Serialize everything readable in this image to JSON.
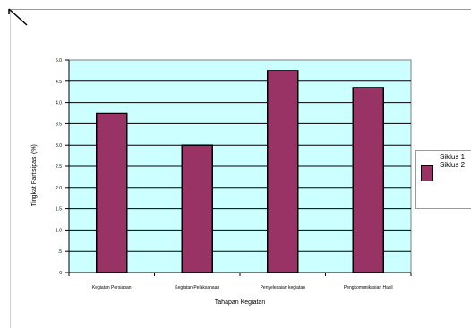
{
  "chart_data": {
    "type": "bar",
    "categories": [
      "Kegiatan Persiapan",
      "Kegiatan Pelaksanaan",
      "Penyelesaian kegiatan",
      "Pengkomunikasian Hasil"
    ],
    "values": [
      3.75,
      3.0,
      4.75,
      4.35
    ],
    "xlabel": "Tahapan Kegiatan",
    "ylabel": "Tingkat Partisipasi (%)",
    "ylim": [
      0,
      5
    ],
    "yticks": [
      "0",
      ".5",
      "1.0",
      "1.5",
      "2.0",
      "2.5",
      "3.0",
      "3.5",
      "4.0",
      "4.5",
      "5.0"
    ],
    "grid": true,
    "legend_position": "right",
    "legend": [
      "Siklus 1",
      "Siklus 2"
    ],
    "colors": {
      "bar": "#993366",
      "plot_background": "#ccffff",
      "grid": "#000000"
    }
  }
}
